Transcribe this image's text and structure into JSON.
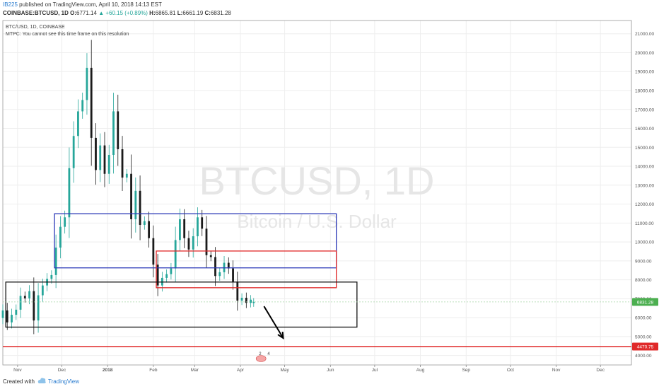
{
  "header": {
    "author": "IB225",
    "published": "published on TradingView.com, April 10, 2018 14:13 EST",
    "symbol": "COINBASE:BTCUSD, 1D",
    "open_label": "O:",
    "open": "6771.14",
    "change": "▲ +60.15 (+0.89%)",
    "high_label": "H:",
    "high": "6865.81",
    "low_label": "L:",
    "low": "6661.19",
    "close_label": "C:",
    "close": "6831.28"
  },
  "legend": {
    "line1": "BTC/USD, 1D, COINBASE",
    "line2": "MTPC: You cannot see this time frame on this resolution"
  },
  "watermark": {
    "symbol": "BTCUSD, 1D",
    "name": "Bitcoin / U.S. Dollar"
  },
  "footer": {
    "created": "Created with",
    "brand": "TradingView"
  },
  "colors": {
    "up": "#26a69a",
    "down": "#1a1a1a",
    "grid": "#eeeeee",
    "blue_box": "#2e3ab8",
    "red_box": "#e02828",
    "black_box": "#111111",
    "support_line": "#e02828",
    "price_tag": "#4caf50"
  },
  "chart_data": {
    "type": "candlestick",
    "title": "BTC/USD, 1D, COINBASE",
    "x_ticks": [
      "Nov",
      "Dec",
      "2018",
      "Feb",
      "Mar",
      "Apr",
      "May",
      "Jun",
      "Jul",
      "Aug",
      "Sep",
      "Oct",
      "Nov",
      "Dec"
    ],
    "y_ticks": [
      "4000.00",
      "5000.00",
      "6000.00",
      "7000.00",
      "8000.00",
      "9000.00",
      "10000.00",
      "11000.00",
      "12000.00",
      "13000.00",
      "14000.00",
      "15000.00",
      "16000.00",
      "17000.00",
      "18000.00",
      "19000.00",
      "20000.00",
      "21000.00"
    ],
    "ylim": [
      3500,
      21700
    ],
    "x_range": [
      "2017-10-22",
      "2018-12-22"
    ],
    "grid": true,
    "candles": [
      [
        "2017-10-22",
        5980,
        6380
      ],
      [
        "2017-10-25",
        6380,
        5750
      ],
      [
        "2017-10-28",
        5750,
        6150
      ],
      [
        "2017-10-31",
        6150,
        6420
      ],
      [
        "2017-11-03",
        6420,
        7150
      ],
      [
        "2017-11-06",
        7150,
        7020
      ],
      [
        "2017-11-09",
        7020,
        7400
      ],
      [
        "2017-11-12",
        7400,
        5850
      ],
      [
        "2017-11-15",
        5850,
        7180
      ],
      [
        "2017-11-18",
        7180,
        7700
      ],
      [
        "2017-11-21",
        7700,
        8050
      ],
      [
        "2017-11-24",
        8050,
        8250
      ],
      [
        "2017-11-27",
        8250,
        9700
      ],
      [
        "2017-11-30",
        9700,
        10800
      ],
      [
        "2017-12-03",
        10800,
        11300
      ],
      [
        "2017-12-06",
        11300,
        13900
      ],
      [
        "2017-12-09",
        13900,
        15600
      ],
      [
        "2017-12-12",
        15600,
        16900
      ],
      [
        "2017-12-15",
        16900,
        17500
      ],
      [
        "2017-12-18",
        17500,
        19200
      ],
      [
        "2017-12-21",
        19200,
        15500
      ],
      [
        "2017-12-24",
        15500,
        13800
      ],
      [
        "2017-12-27",
        13800,
        15100
      ],
      [
        "2017-12-30",
        15100,
        13600
      ],
      [
        "2018-01-02",
        13600,
        14600
      ],
      [
        "2018-01-05",
        14600,
        16900
      ],
      [
        "2018-01-08",
        16900,
        14900
      ],
      [
        "2018-01-11",
        14900,
        13400
      ],
      [
        "2018-01-14",
        13400,
        13600
      ],
      [
        "2018-01-17",
        13600,
        11200
      ],
      [
        "2018-01-20",
        11200,
        12700
      ],
      [
        "2018-01-23",
        12700,
        10900
      ],
      [
        "2018-01-26",
        10900,
        11100
      ],
      [
        "2018-01-29",
        11100,
        10200
      ],
      [
        "2018-02-01",
        10200,
        8800
      ],
      [
        "2018-02-04",
        8800,
        7700
      ],
      [
        "2018-02-07",
        7700,
        8100
      ],
      [
        "2018-02-10",
        8100,
        8300
      ],
      [
        "2018-02-13",
        8300,
        8600
      ],
      [
        "2018-02-16",
        8600,
        10100
      ],
      [
        "2018-02-19",
        10100,
        11200
      ],
      [
        "2018-02-22",
        11200,
        10200
      ],
      [
        "2018-02-25",
        10200,
        9600
      ],
      [
        "2018-02-28",
        9600,
        10300
      ],
      [
        "2018-03-03",
        10300,
        11300
      ],
      [
        "2018-03-06",
        11300,
        10700
      ],
      [
        "2018-03-09",
        10700,
        9300
      ],
      [
        "2018-03-12",
        9300,
        9200
      ],
      [
        "2018-03-15",
        9200,
        8200
      ],
      [
        "2018-03-18",
        8200,
        8400
      ],
      [
        "2018-03-21",
        8400,
        8900
      ],
      [
        "2018-03-24",
        8900,
        8600
      ],
      [
        "2018-03-27",
        8600,
        7900
      ],
      [
        "2018-03-30",
        7900,
        6900
      ],
      [
        "2018-04-02",
        6900,
        7050
      ],
      [
        "2018-04-05",
        7050,
        6780
      ],
      [
        "2018-04-08",
        6780,
        6950
      ],
      [
        "2018-04-10",
        6771,
        6831
      ]
    ],
    "price_label": "6831.28",
    "support_level": 4470.75,
    "support_label": "4470.75",
    "boxes": [
      {
        "color": "blue",
        "from": "2017-11-26",
        "to": "2018-06-05",
        "low": 8630,
        "high": 11490
      },
      {
        "color": "red",
        "from": "2018-02-03",
        "to": "2018-06-05",
        "low": 7580,
        "high": 9520
      },
      {
        "color": "black",
        "from": "2017-10-24",
        "to": "2018-06-19",
        "low": 5500,
        "high": 7880
      }
    ],
    "arrow": {
      "from_date": "2018-04-17",
      "from_price": 6600,
      "to_date": "2018-04-30",
      "to_price": 4920
    },
    "event_marker": {
      "date": "2018-04-15",
      "labels": [
        "2",
        "4"
      ]
    }
  }
}
